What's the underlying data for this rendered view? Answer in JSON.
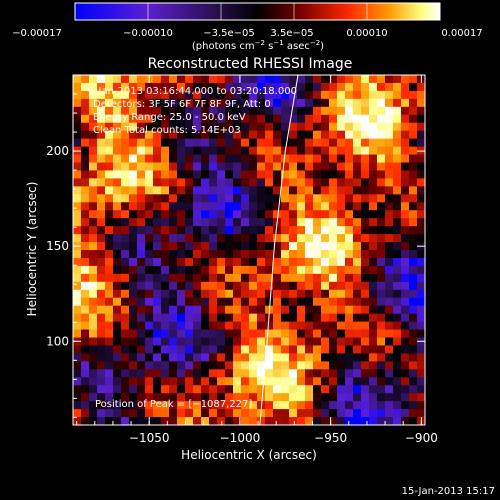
{
  "colorbar": {
    "tick_labels": [
      "−0.00017",
      "−0.00010",
      "−3.5e−05",
      "3.5e−05",
      "0.00010",
      "0.00017"
    ],
    "unit_main": "(photons cm",
    "unit_exp1": "−2",
    "unit_mid": " s",
    "unit_exp2": "−1",
    "unit_tail": " asec",
    "unit_exp3": "−2",
    "unit_close": ")",
    "colors": [
      "#0000ff",
      "#5b1fd0",
      "#2a1050",
      "#000000",
      "#7a0000",
      "#ff2a00",
      "#ff9a00",
      "#ffff80",
      "#ffffff"
    ]
  },
  "plot": {
    "title": "Reconstructed RHESSI Image",
    "overlay_lines": [
      "6-Jan-2013 03:16:44.000 to 03:20:18.000",
      "Detectors: 3F 5F 6F 7F 8F 9F, Att: 0",
      "Energy Range: 25.0 - 50.0 keV",
      "Clean     Total counts: 5.14E+03"
    ],
    "peak_text": "Position of Peak = [−1087,227]"
  },
  "footer": {
    "timestamp": "15-Jan-2013 15:17"
  },
  "chart_data": {
    "type": "heatmap",
    "title": "Reconstructed RHESSI Image",
    "xlabel": "Heliocentric X (arcsec)",
    "ylabel": "Heliocentric Y (arcsec)",
    "xlim": [
      -1092,
      -898
    ],
    "ylim": [
      56,
      240
    ],
    "x_ticks": [
      -1050,
      -1000,
      -950,
      -900
    ],
    "y_ticks": [
      100,
      150,
      200
    ],
    "x_tick_labels": [
      "−1050",
      "−1000",
      "−950",
      "−900"
    ],
    "y_tick_labels": [
      "100",
      "150",
      "200"
    ],
    "value_range": [
      -0.00017,
      0.00017
    ],
    "value_unit": "photons cm-2 s-1 asec-2",
    "limb_curve": [
      [
        -968,
        240
      ],
      [
        -975,
        200
      ],
      [
        -981,
        150
      ],
      [
        -985,
        100
      ],
      [
        -989,
        56
      ]
    ]
  }
}
